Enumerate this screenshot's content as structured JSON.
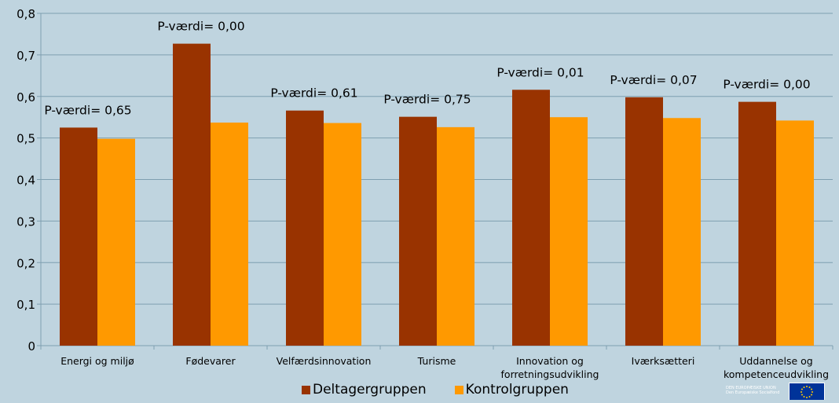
{
  "chart_data": {
    "type": "bar",
    "title": "",
    "xlabel": "",
    "ylabel": "",
    "ylim": [
      0,
      0.8
    ],
    "yticks": [
      "0",
      "0,1",
      "0,2",
      "0,3",
      "0,4",
      "0,5",
      "0,6",
      "0,7",
      "0,8"
    ],
    "grid": true,
    "legend_position": "bottom",
    "categories": [
      [
        "Energi og miljø"
      ],
      [
        "Fødevarer"
      ],
      [
        "Velfærdsinnovation"
      ],
      [
        "Turisme"
      ],
      [
        "Innovation og",
        "forretningsudvikling"
      ],
      [
        "Iværksætteri"
      ],
      [
        "Uddannelse og",
        "kompetenceudvikling"
      ]
    ],
    "series": [
      {
        "name": "Deltagergruppen",
        "color": "#993300",
        "values": [
          0.525,
          0.727,
          0.566,
          0.551,
          0.616,
          0.598,
          0.587
        ]
      },
      {
        "name": "Kontrolgruppen",
        "color": "#ff9900",
        "values": [
          0.498,
          0.537,
          0.536,
          0.526,
          0.55,
          0.548,
          0.542
        ]
      }
    ],
    "annotations": [
      "P-værdi= 0,65",
      "P-værdi= 0,00",
      "P-værdi= 0,61",
      "P-værdi= 0,75",
      "P-værdi= 0,01",
      "P-værdi= 0,07",
      "P-værdi= 0,00"
    ]
  },
  "logo": {
    "text_lines": [
      "DEN EUROPÆISKE UNION",
      "Den Europæiske Socialfond"
    ],
    "flag_color": "#003399",
    "star_color": "#ffcc00"
  }
}
